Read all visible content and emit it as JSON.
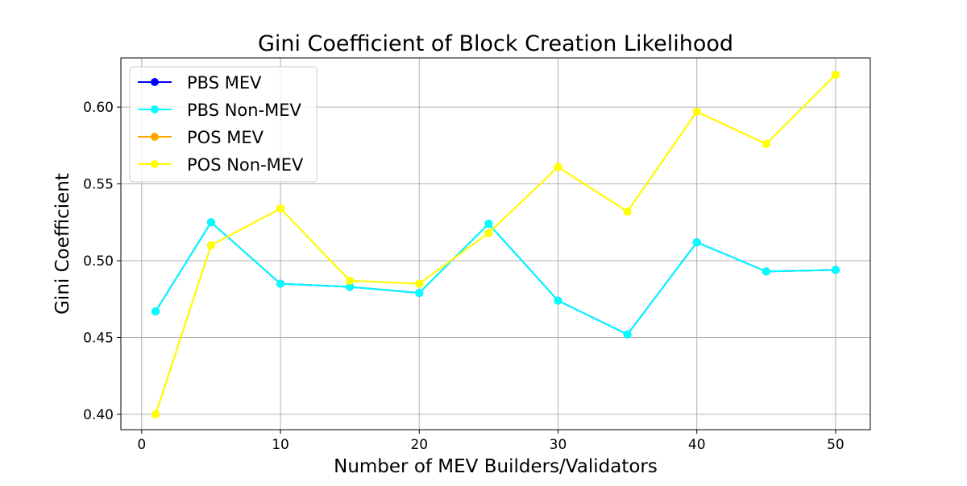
{
  "chart_data": {
    "type": "line",
    "title": "Gini Coefficient of Block Creation Likelihood",
    "xlabel": "Number of MEV Builders/Validators",
    "ylabel": "Gini Coefficient",
    "xlim": [
      -1.5,
      52.5
    ],
    "ylim": [
      0.39,
      0.632
    ],
    "x_ticks": [
      0,
      10,
      20,
      30,
      40,
      50
    ],
    "y_ticks": [
      0.4,
      0.45,
      0.5,
      0.55,
      0.6
    ],
    "x_tick_labels": [
      "0",
      "10",
      "20",
      "30",
      "40",
      "50"
    ],
    "y_tick_labels": [
      "0.40",
      "0.45",
      "0.50",
      "0.55",
      "0.60"
    ],
    "grid": true,
    "legend_position": "top-left",
    "x": [
      1,
      5,
      10,
      15,
      20,
      25,
      30,
      35,
      40,
      45,
      50
    ],
    "series": [
      {
        "name": "PBS MEV",
        "color": "#0000ff",
        "values": [
          0.467,
          0.525,
          0.485,
          0.483,
          0.479,
          0.524,
          0.474,
          0.452,
          0.512,
          0.493,
          0.494
        ]
      },
      {
        "name": "PBS Non-MEV",
        "color": "#00ffff",
        "values": [
          0.467,
          0.525,
          0.485,
          0.483,
          0.479,
          0.524,
          0.474,
          0.452,
          0.512,
          0.493,
          0.494
        ]
      },
      {
        "name": "POS MEV",
        "color": "#ffa500",
        "values": [
          0.4,
          0.51,
          0.534,
          0.487,
          0.485,
          0.518,
          0.561,
          0.532,
          0.597,
          0.576,
          0.621
        ]
      },
      {
        "name": "POS Non-MEV",
        "color": "#ffff00",
        "values": [
          0.4,
          0.51,
          0.534,
          0.487,
          0.485,
          0.518,
          0.561,
          0.532,
          0.597,
          0.576,
          0.621
        ]
      }
    ]
  }
}
